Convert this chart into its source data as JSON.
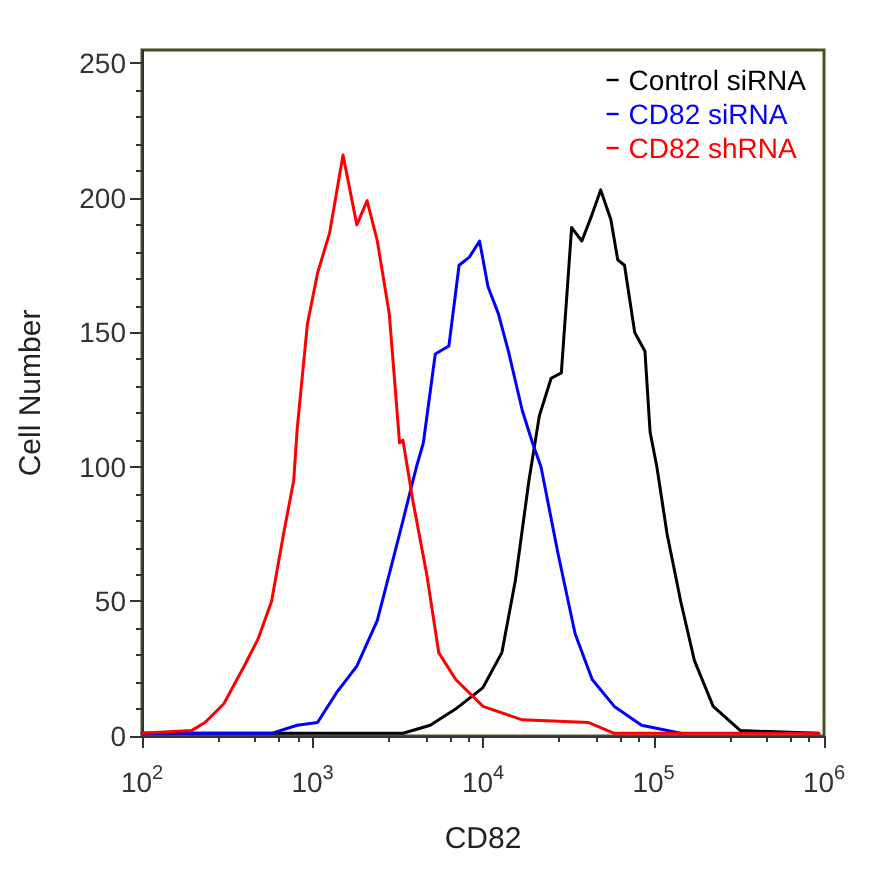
{
  "chart_data": {
    "type": "line",
    "xlabel": "CD82",
    "ylabel": "Cell Number",
    "log": "x",
    "xlim": [
      100,
      1000000
    ],
    "xticks": [
      {
        "value": 100,
        "label": "10$^{2}$"
      },
      {
        "value": 1000,
        "label": "10$^{3}$"
      },
      {
        "value": 10000,
        "label": "10$^{4}$"
      },
      {
        "value": 100000,
        "label": "10$^{5}$"
      },
      {
        "value": 1000000,
        "label": "10$^{6}$"
      }
    ],
    "ylim": [
      0,
      255
    ],
    "yticks": [
      0,
      50,
      100,
      150,
      200,
      250
    ],
    "grid": false,
    "legend": "top right",
    "marker": "none",
    "line_style": "solid",
    "series": [
      {
        "name": "Control siRNA",
        "color": "#000000",
        "x": [
          100,
          3400,
          4900,
          6900,
          10000,
          12900,
          15500,
          18600,
          21400,
          25100,
          28800,
          33100,
          38000,
          43700,
          49000,
          56200,
          61700,
          67600,
          77600,
          89100,
          95500,
          104700,
          120200,
          144500,
          173800,
          223900,
          323600,
          933000
        ],
        "values": [
          1,
          1,
          4,
          10,
          18,
          31,
          58,
          95,
          119,
          133,
          135,
          189,
          184,
          194,
          203,
          192,
          177,
          175,
          150,
          143,
          113,
          100,
          75,
          50,
          28,
          11,
          2,
          1
        ]
      },
      {
        "name": "CD82 siRNA",
        "color": "#0000ff",
        "x": [
          100,
          575,
          813,
          1070,
          1380,
          1820,
          2400,
          2950,
          3390,
          4070,
          4470,
          5250,
          6310,
          7240,
          8320,
          9550,
          10700,
          12300,
          14100,
          17000,
          19500,
          21900,
          27500,
          34700,
          43700,
          58900,
          85100,
          144500
        ],
        "values": [
          1,
          1,
          4,
          5,
          16,
          26,
          43,
          65,
          80,
          100,
          109,
          142,
          145,
          175,
          178,
          184,
          167,
          157,
          143,
          121,
          109,
          100,
          68,
          38,
          21,
          11,
          4,
          1
        ]
      },
      {
        "name": "CD82 shRNA",
        "color": "#ff0000",
        "x": [
          100,
          195,
          234,
          302,
          398,
          479,
          575,
          676,
          776,
          813,
          933,
          1070,
          1260,
          1510,
          1820,
          2090,
          2400,
          2820,
          3240,
          3390,
          3890,
          4680,
          5500,
          6920,
          10000,
          17000,
          41700,
          58900,
          120200,
          933000
        ],
        "values": [
          1,
          2,
          5,
          12,
          26,
          36,
          50,
          75,
          95,
          114,
          153,
          172,
          187,
          216,
          190,
          199,
          184,
          157,
          109,
          110,
          87,
          60,
          31,
          21,
          11,
          6,
          5,
          1,
          1,
          1
        ]
      }
    ]
  }
}
